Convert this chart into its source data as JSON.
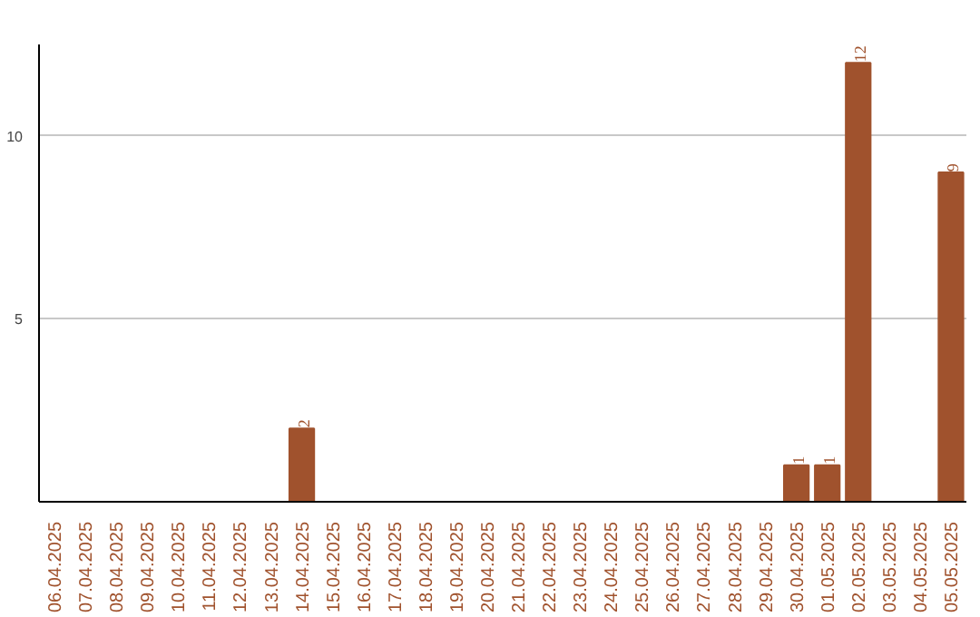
{
  "chart_data": {
    "type": "bar",
    "categories": [
      "06.04.2025",
      "07.04.2025",
      "08.04.2025",
      "09.04.2025",
      "10.04.2025",
      "11.04.2025",
      "12.04.2025",
      "13.04.2025",
      "14.04.2025",
      "15.04.2025",
      "16.04.2025",
      "17.04.2025",
      "18.04.2025",
      "19.04.2025",
      "20.04.2025",
      "21.04.2025",
      "22.04.2025",
      "23.04.2025",
      "24.04.2025",
      "25.04.2025",
      "26.04.2025",
      "27.04.2025",
      "28.04.2025",
      "29.04.2025",
      "30.04.2025",
      "01.05.2025",
      "02.05.2025",
      "03.05.2025",
      "04.05.2025",
      "05.05.2025"
    ],
    "values": [
      0,
      0,
      0,
      0,
      0,
      0,
      0,
      0,
      2,
      0,
      0,
      0,
      0,
      0,
      0,
      0,
      0,
      0,
      0,
      0,
      0,
      0,
      0,
      0,
      1,
      1,
      12,
      0,
      0,
      9
    ],
    "value_labels": [
      null,
      null,
      null,
      null,
      null,
      null,
      null,
      null,
      "2",
      null,
      null,
      null,
      null,
      null,
      null,
      null,
      null,
      null,
      null,
      null,
      null,
      null,
      null,
      null,
      "1",
      "1",
      "12",
      null,
      null,
      "9"
    ],
    "color": "#a0522d",
    "ylim": [
      0,
      12.5
    ],
    "yticks": [
      5,
      10
    ],
    "grid": "y"
  }
}
